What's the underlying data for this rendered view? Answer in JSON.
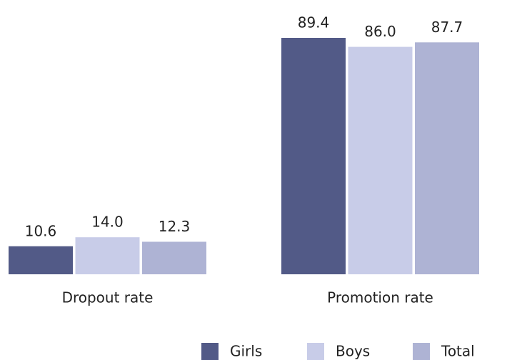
{
  "chart_data": {
    "type": "bar",
    "categories": [
      "Dropout rate",
      "Promotion rate"
    ],
    "series": [
      {
        "name": "Girls",
        "color": "#525a87",
        "values": [
          10.6,
          89.4
        ]
      },
      {
        "name": "Boys",
        "color": "#c8cce8",
        "values": [
          14,
          86
        ],
        "value_labels": [
          "14.0",
          "86.0"
        ]
      },
      {
        "name": "Total",
        "color": "#aeb3d4",
        "values": [
          12.3,
          87.7
        ]
      }
    ]
  }
}
